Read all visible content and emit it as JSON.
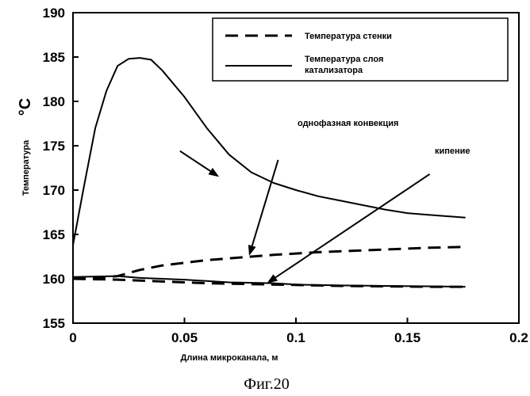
{
  "chart_data": {
    "type": "line",
    "caption": "Фиг.20",
    "unit_label": "°C",
    "xlabel": "Длина микроканала, м",
    "ylabel": "Температура",
    "xlim": [
      0,
      0.2
    ],
    "ylim": [
      155,
      190
    ],
    "x_ticks": [
      0,
      0.05,
      0.1,
      0.15,
      0.2
    ],
    "x_tick_labels": [
      "0",
      "0.05",
      "0.1",
      "0.15",
      "0.2"
    ],
    "y_ticks": [
      155,
      160,
      165,
      170,
      175,
      180,
      185,
      190
    ],
    "y_tick_labels": [
      "155",
      "160",
      "165",
      "170",
      "175",
      "180",
      "185",
      "190"
    ],
    "grid": false,
    "legend": {
      "position": "top-right",
      "entries": [
        {
          "label": "Температура стенки",
          "style": "dashed"
        },
        {
          "label_lines": [
            "Температура слоя",
            "катализатора"
          ],
          "style": "solid"
        }
      ]
    },
    "series": [
      {
        "name": "Температура стенки (однофазная конвекция)",
        "style": "dashed",
        "x": [
          0,
          0.01,
          0.02,
          0.03,
          0.04,
          0.05,
          0.06,
          0.07,
          0.08,
          0.09,
          0.1,
          0.11,
          0.12,
          0.13,
          0.14,
          0.15,
          0.16,
          0.176
        ],
        "y": [
          160.0,
          160.1,
          160.3,
          161.0,
          161.5,
          161.8,
          162.1,
          162.3,
          162.5,
          162.7,
          162.85,
          163.0,
          163.1,
          163.2,
          163.3,
          163.4,
          163.5,
          163.6
        ]
      },
      {
        "name": "Температура стенки (кипение)",
        "style": "dashed",
        "x": [
          0,
          0.02,
          0.04,
          0.06,
          0.08,
          0.1,
          0.12,
          0.14,
          0.16,
          0.176
        ],
        "y": [
          160.0,
          159.9,
          159.7,
          159.5,
          159.4,
          159.3,
          159.2,
          159.15,
          159.1,
          159.1
        ]
      },
      {
        "name": "Температура слоя катализатора (однофазная конвекция)",
        "style": "solid",
        "x": [
          0,
          0.005,
          0.01,
          0.015,
          0.02,
          0.025,
          0.03,
          0.035,
          0.04,
          0.05,
          0.06,
          0.07,
          0.08,
          0.09,
          0.1,
          0.11,
          0.12,
          0.13,
          0.14,
          0.15,
          0.16,
          0.176
        ],
        "y": [
          163.8,
          170.5,
          177.0,
          181.2,
          184.0,
          184.8,
          184.9,
          184.7,
          183.5,
          180.5,
          177.0,
          174.0,
          172.0,
          170.8,
          170.0,
          169.3,
          168.8,
          168.3,
          167.8,
          167.4,
          167.2,
          166.9
        ]
      },
      {
        "name": "Температура слоя катализатора (кипение)",
        "style": "solid",
        "x": [
          0,
          0.02,
          0.03,
          0.05,
          0.07,
          0.09,
          0.1,
          0.12,
          0.14,
          0.16,
          0.176
        ],
        "y": [
          160.2,
          160.3,
          160.1,
          159.9,
          159.6,
          159.5,
          159.35,
          159.25,
          159.2,
          159.15,
          159.1
        ]
      }
    ],
    "annotations": [
      {
        "text": "однофазная конвекция",
        "arrows": [
          {
            "from": [
              0.048,
              174.4
            ],
            "to": [
              0.0655,
              171.5
            ]
          },
          {
            "from": [
              0.092,
              173.4
            ],
            "to": [
              0.079,
              162.6
            ]
          }
        ]
      },
      {
        "text": "кипение",
        "arrows": [
          {
            "from": [
              0.16,
              171.8
            ],
            "to": [
              0.087,
              159.5
            ]
          }
        ]
      }
    ]
  }
}
